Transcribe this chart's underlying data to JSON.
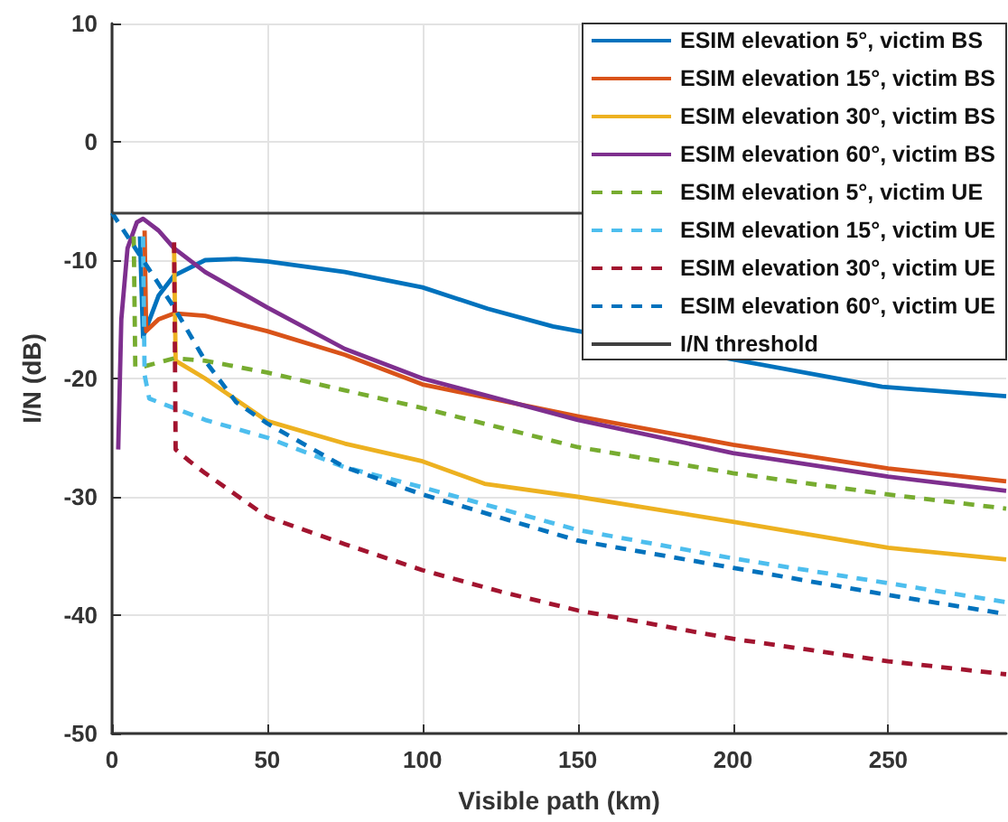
{
  "chart_data": {
    "type": "line",
    "xlabel": "Visible path (km)",
    "ylabel": "I/N (dB)",
    "xlim": [
      0,
      288
    ],
    "xticks": [
      0,
      50,
      100,
      150,
      200,
      250
    ],
    "ylim": [
      -50,
      10
    ],
    "yticks": [
      -50,
      -40,
      -30,
      -20,
      -10,
      0,
      10
    ],
    "grid": true,
    "legend": "top right",
    "marker": "none",
    "series": [
      {
        "name": "ESIM elevation 5°, victim BS",
        "color": "#0072bd",
        "line_style": "solid",
        "x": [
          9,
          10,
          15,
          20,
          30,
          40,
          50,
          75,
          100,
          121,
          142,
          248,
          288
        ],
        "values": [
          -8,
          -16.5,
          -13,
          -11.3,
          -10,
          -9.9,
          -10.1,
          -11,
          -12.3,
          -14.1,
          -15.6,
          -20.7,
          -21.5
        ]
      },
      {
        "name": "ESIM elevation 15°, victim BS",
        "color": "#d95319",
        "line_style": "solid",
        "x": [
          10.5,
          11,
          15,
          20,
          30,
          50,
          75,
          100,
          150,
          200,
          250,
          288
        ],
        "values": [
          -7.5,
          -16,
          -15,
          -14.5,
          -14.7,
          -16,
          -18,
          -20.5,
          -23.2,
          -25.6,
          -27.6,
          -28.7
        ]
      },
      {
        "name": "ESIM elevation 30°, victim BS",
        "color": "#edb120",
        "line_style": "solid",
        "x": [
          20,
          20.5,
          30,
          50,
          75,
          100,
          120,
          150,
          200,
          250,
          288
        ],
        "values": [
          -9,
          -18.5,
          -20,
          -23.6,
          -25.5,
          -27,
          -28.9,
          -30,
          -32.1,
          -34.3,
          -35.3
        ]
      },
      {
        "name": "ESIM elevation 60°, victim BS",
        "color": "#7e2f8e",
        "line_style": "solid",
        "x": [
          2,
          3,
          5,
          8,
          10,
          15,
          20,
          30,
          50,
          75,
          100,
          150,
          200,
          250,
          288
        ],
        "values": [
          -26,
          -15,
          -9,
          -6.8,
          -6.5,
          -7.5,
          -9,
          -11,
          -14,
          -17.5,
          -20,
          -23.5,
          -26.3,
          -28.3,
          -29.5
        ]
      },
      {
        "name": "ESIM elevation 5°, victim UE",
        "color": "#77ac30",
        "line_style": "dashed",
        "x": [
          7,
          7.5,
          10,
          20,
          30,
          50,
          75,
          100,
          150,
          200,
          250,
          288
        ],
        "values": [
          -8,
          -19,
          -19,
          -18.3,
          -18.5,
          -19.5,
          -21,
          -22.5,
          -25.8,
          -28,
          -29.8,
          -31
        ]
      },
      {
        "name": "ESIM elevation 15°, victim UE",
        "color": "#4dbeee",
        "line_style": "dashed",
        "x": [
          10,
          10.5,
          12,
          20,
          30,
          50,
          75,
          100,
          150,
          200,
          250,
          288
        ],
        "values": [
          -8,
          -19.7,
          -21.7,
          -22.5,
          -23.5,
          -25,
          -27.5,
          -29.2,
          -32.8,
          -35.2,
          -37.3,
          -38.9
        ]
      },
      {
        "name": "ESIM elevation 30°, victim UE",
        "color": "#a2142f",
        "line_style": "dashed",
        "x": [
          20,
          20.5,
          25,
          30,
          50,
          75,
          100,
          125,
          150,
          200,
          250,
          288
        ],
        "values": [
          -8.5,
          -26,
          -27,
          -28,
          -31.7,
          -34,
          -36.2,
          -38,
          -39.6,
          -42,
          -43.9,
          -45
        ]
      },
      {
        "name": "ESIM elevation 60°, victim UE",
        "color": "#0072bd",
        "line_style": "dashed",
        "x": [
          0,
          10,
          20,
          30,
          40,
          50,
          75,
          100,
          150,
          200,
          250,
          288
        ],
        "values": [
          -6,
          -10,
          -14,
          -18.5,
          -22,
          -23.8,
          -27.5,
          -29.8,
          -33.7,
          -36,
          -38.3,
          -39.9
        ]
      }
    ],
    "ref_lines": [
      {
        "axis": "y",
        "value": -6,
        "label": "I/N threshold",
        "color": "#404040",
        "line_style": "solid"
      }
    ]
  }
}
